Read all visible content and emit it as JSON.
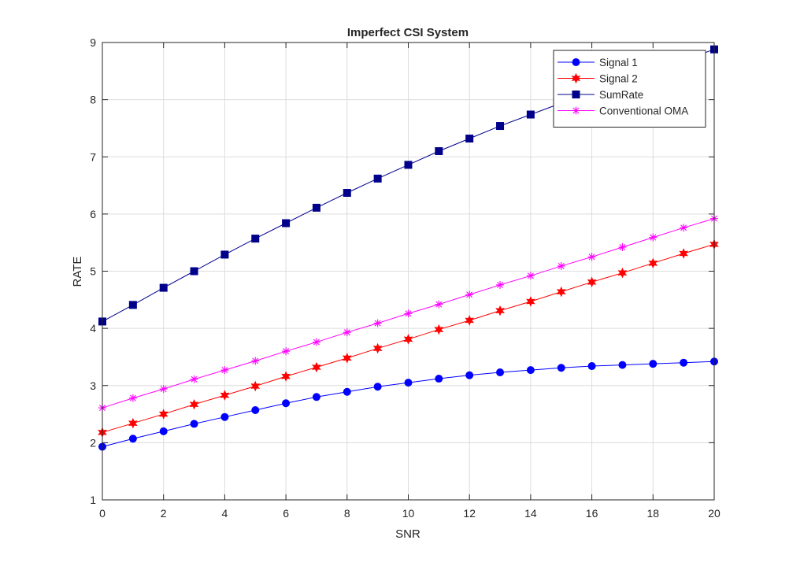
{
  "chart_data": {
    "type": "line",
    "title": "Imperfect CSI System",
    "xlabel": "SNR",
    "ylabel": "RATE",
    "xlim": [
      0,
      20
    ],
    "ylim": [
      1,
      9
    ],
    "xticks": [
      0,
      2,
      4,
      6,
      8,
      10,
      12,
      14,
      16,
      18,
      20
    ],
    "yticks": [
      1,
      2,
      3,
      4,
      5,
      6,
      7,
      8,
      9
    ],
    "grid": true,
    "legend_position": "top-right",
    "x": [
      0,
      1,
      2,
      3,
      4,
      5,
      6,
      7,
      8,
      9,
      10,
      11,
      12,
      13,
      14,
      15,
      16,
      17,
      18,
      19,
      20
    ],
    "series": [
      {
        "name": "Signal 1",
        "color": "#0000ff",
        "marker": "circle",
        "values": [
          1.93,
          2.07,
          2.2,
          2.33,
          2.45,
          2.57,
          2.69,
          2.8,
          2.89,
          2.98,
          3.05,
          3.12,
          3.18,
          3.23,
          3.27,
          3.31,
          3.34,
          3.36,
          3.38,
          3.4,
          3.42
        ]
      },
      {
        "name": "Signal 2",
        "color": "#ff0000",
        "marker": "hexagram",
        "values": [
          2.18,
          2.34,
          2.5,
          2.67,
          2.83,
          2.99,
          3.16,
          3.32,
          3.48,
          3.65,
          3.81,
          3.98,
          4.14,
          4.31,
          4.47,
          4.64,
          4.81,
          4.97,
          5.14,
          5.31,
          5.47
        ]
      },
      {
        "name": "SumRate",
        "color": "#00008b",
        "marker": "square",
        "values": [
          4.12,
          4.41,
          4.71,
          5.0,
          5.29,
          5.57,
          5.84,
          6.11,
          6.37,
          6.62,
          6.86,
          7.1,
          7.32,
          7.54,
          7.74,
          7.94,
          8.13,
          8.32,
          8.5,
          8.69,
          8.88
        ]
      },
      {
        "name": "Conventional OMA",
        "color": "#ff00ff",
        "marker": "asterisk",
        "values": [
          2.61,
          2.78,
          2.94,
          3.11,
          3.27,
          3.43,
          3.6,
          3.76,
          3.93,
          4.09,
          4.26,
          4.42,
          4.59,
          4.76,
          4.92,
          5.09,
          5.25,
          5.42,
          5.59,
          5.76,
          5.92
        ]
      }
    ]
  }
}
